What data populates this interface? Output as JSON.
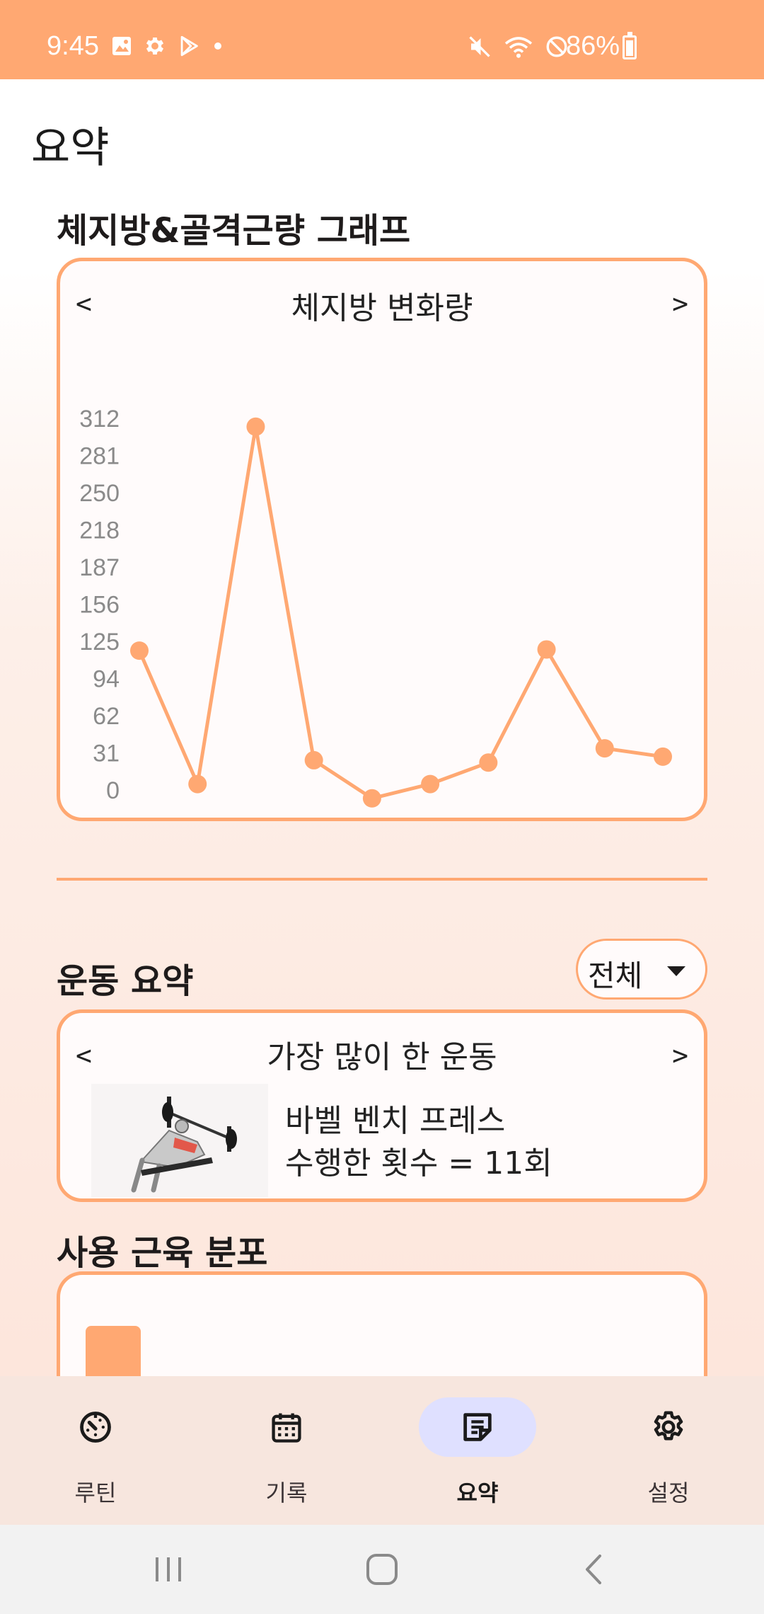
{
  "status_bar": {
    "time": "9:45",
    "battery": "86%",
    "left_icons": [
      "gallery-icon",
      "gear-icon",
      "play-store-icon",
      "dot-icon"
    ],
    "right_icons": [
      "mute-icon",
      "wifi-icon",
      "do-not-disturb-icon",
      "battery-icon"
    ]
  },
  "page": {
    "title": "요약"
  },
  "body_graph": {
    "section_title": "체지방&골격근량 그래프",
    "prev": "<",
    "next": ">",
    "card_title": "체지방 변화량"
  },
  "chart_data": {
    "type": "line",
    "title": "체지방 변화량",
    "y_ticks": [
      "312",
      "281",
      "250",
      "218",
      "187",
      "156",
      "125",
      "94",
      "62",
      "31",
      "0"
    ],
    "ylim": [
      0,
      312
    ],
    "values": [
      117,
      5,
      305,
      25,
      -7,
      5,
      23,
      118,
      35,
      28
    ],
    "color": "#ffa872",
    "grid": false,
    "legend": "none"
  },
  "exercise_summary": {
    "section_title": "운동 요약",
    "filter": "전체",
    "prev": "<",
    "next": ">",
    "card_title": "가장 많이 한 운동",
    "exercise_name": "바벨 벤치 프레스",
    "count_text": "수행한 횟수 = 11회"
  },
  "muscle_distribution": {
    "section_title": "사용 근육 분포"
  },
  "nav": {
    "items": [
      {
        "label": "루틴",
        "icon": "timer-icon"
      },
      {
        "label": "기록",
        "icon": "calendar-icon"
      },
      {
        "label": "요약",
        "icon": "summary-note-icon",
        "active": true
      },
      {
        "label": "설정",
        "icon": "gear-icon"
      }
    ]
  },
  "colors": {
    "accent": "#ffa872",
    "active_pill": "#dfe0ff"
  }
}
